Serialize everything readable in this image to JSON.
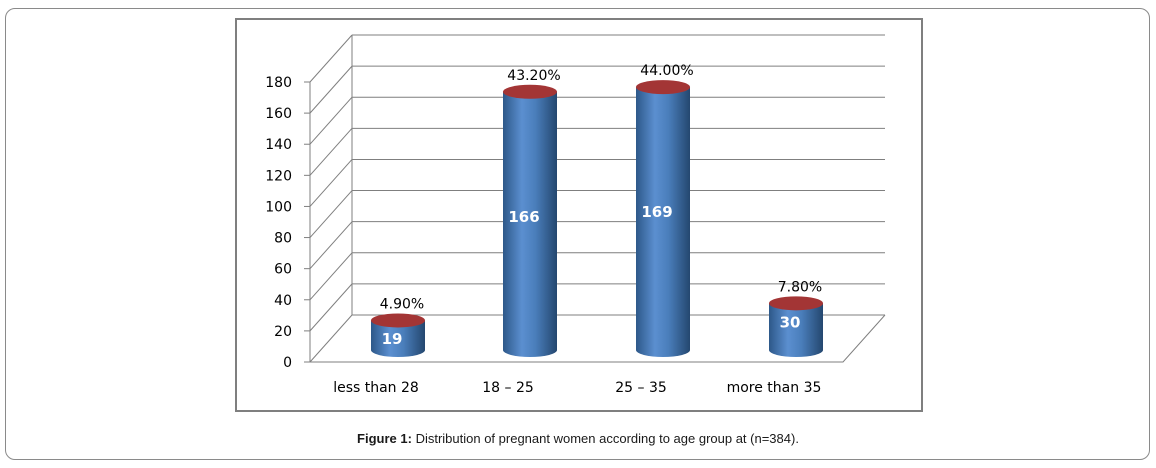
{
  "caption": {
    "label": "Figure 1:",
    "text": " Distribution of pregnant women according to age group at (n=384)."
  },
  "chart_data": {
    "type": "bar",
    "style": "3d-cylinder",
    "categories": [
      "less than 28",
      "18 – 25",
      "25 – 35",
      "more than 35"
    ],
    "values": [
      19,
      166,
      169,
      30
    ],
    "percent_labels": [
      "4.90%",
      "43.20%",
      "44.00%",
      "7.80%"
    ],
    "ylim": [
      0,
      180
    ],
    "yticks": [
      0,
      20,
      40,
      60,
      80,
      100,
      120,
      140,
      160,
      180
    ],
    "grid": true,
    "legend": "none",
    "colors": {
      "bar": "#4a7ebb",
      "bar_dark": "#2f5a8f",
      "bar_top": "#a33535",
      "grid": "#7f7f7f"
    }
  }
}
